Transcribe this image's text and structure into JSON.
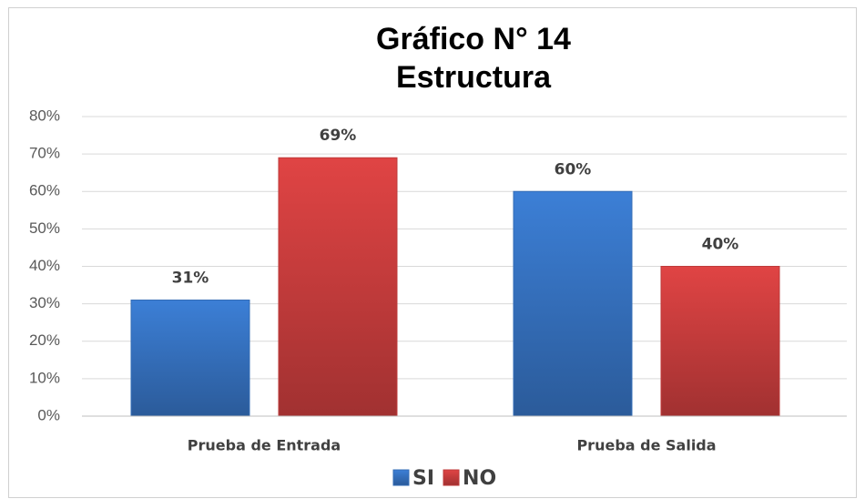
{
  "chart_data": {
    "type": "bar",
    "title": "Gráfico N° 14",
    "subtitle": "Estructura",
    "categories": [
      "Prueba de Entrada",
      "Prueba de Salida"
    ],
    "series": [
      {
        "name": "SI",
        "color": "#3c7fd6",
        "values": [
          31,
          60
        ],
        "value_labels": [
          "31%",
          "60%"
        ]
      },
      {
        "name": "NO",
        "color": "#e04444",
        "values": [
          69,
          40
        ],
        "value_labels": [
          "69%",
          "40%"
        ]
      }
    ],
    "ylim": [
      0,
      80
    ],
    "yticks": [
      {
        "value": 0,
        "label": "0%"
      },
      {
        "value": 10,
        "label": "10%"
      },
      {
        "value": 20,
        "label": "20%"
      },
      {
        "value": 30,
        "label": "30%"
      },
      {
        "value": 40,
        "label": "40%"
      },
      {
        "value": 50,
        "label": "50%"
      },
      {
        "value": 60,
        "label": "60%"
      },
      {
        "value": 70,
        "label": "70%"
      },
      {
        "value": 80,
        "label": "80%"
      }
    ],
    "grid": true,
    "legend": "bottom"
  }
}
